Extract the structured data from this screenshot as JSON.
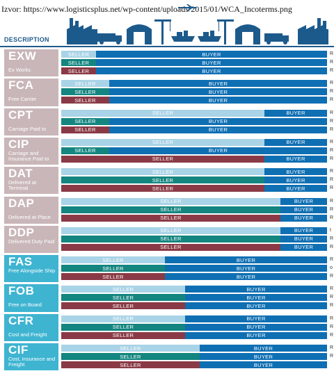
{
  "source": "Izvor: https://www.logisticsplus.net/wp-content/uploads/2015/01/WCA_Incoterms.png",
  "header": {
    "description_label": "DESCRIPTION"
  },
  "labels": {
    "seller": "SELLER",
    "buyer": "BUYER"
  },
  "colors": {
    "buyer": "#0f6fb3",
    "seller_light": "#a9d3e6",
    "seller_teal": "#14857f",
    "seller_red": "#8a3a46",
    "e_group_bg": "#c9b6b8",
    "f_group_bg": "#3eb4d1"
  },
  "terms": [
    {
      "code": "EXW",
      "full": "Ex Works",
      "rows": [
        0.13,
        0.13,
        0.13
      ]
    },
    {
      "code": "FCA",
      "full": "Free Carrier",
      "rows": [
        0.18,
        0.18,
        0.18
      ]
    },
    {
      "code": "CPT",
      "full": "Carriage Paid to",
      "rows": [
        0.765,
        0.18,
        0.18
      ]
    },
    {
      "code": "CIP",
      "full": "Carriage and Insurance Paid to",
      "rows": [
        0.765,
        0.18,
        0.765
      ]
    },
    {
      "code": "DAT",
      "full": "Delivered at Terminal",
      "rows": [
        0.765,
        0.765,
        0.765
      ]
    },
    {
      "code": "DAP",
      "full": "Delivered at Place",
      "rows": [
        0.825,
        0.825,
        0.825
      ]
    },
    {
      "code": "DDP",
      "full": "Delivered Duty Paid",
      "rows": [
        0.825,
        0.825,
        0.825
      ]
    },
    {
      "code": "FAS",
      "full": "Free Alongside Ship",
      "rows": [
        0.39,
        0.39,
        0.39
      ]
    },
    {
      "code": "FOB",
      "full": "Free on Board",
      "rows": [
        0.465,
        0.465,
        0.465
      ]
    },
    {
      "code": "CFR",
      "full": "Cost and Freight",
      "rows": [
        0.465,
        0.465,
        0.465
      ]
    },
    {
      "code": "CIF",
      "full": "Cost, Insurance and Freight",
      "rows": [
        0.52,
        0.52,
        0.52
      ]
    }
  ],
  "right_edge_marks": [
    "R",
    "R",
    "R",
    "R",
    "R",
    "R",
    "R",
    "R",
    "R",
    "R",
    "R",
    "R",
    "R",
    "R",
    "R",
    "R",
    "R",
    "R",
    "t",
    "R",
    "R",
    "R",
    "o",
    "R",
    "R",
    "R",
    "R",
    "R",
    "R",
    "R",
    "R",
    "R"
  ]
}
